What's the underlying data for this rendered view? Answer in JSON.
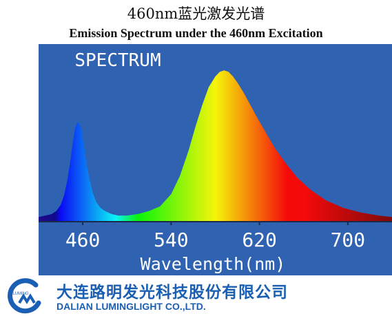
{
  "header": {
    "title_cn": "460nm蓝光激发光谱",
    "title_en": "Emission Spectrum under the 460nm Excitation"
  },
  "company": {
    "name_cn": "大连路明发光科技股份有限公司",
    "name_en": "DALIAN LUMINGLIGHT CO.,LTD.",
    "logo_text": "LUMING",
    "brand_color": "#1a5fb4"
  },
  "chart_data": {
    "type": "area",
    "title": "SPECTRUM",
    "xlabel": "Wavelength(nm)",
    "ylabel": "",
    "xlim": [
      420,
      740
    ],
    "ylim": [
      0,
      1.0
    ],
    "xticks": [
      460,
      540,
      620,
      700
    ],
    "xtick_labels": [
      "460",
      "540",
      "620",
      "700"
    ],
    "grid": false,
    "background_color": "#2f62b1",
    "fill": "wavelength-rainbow",
    "series": [
      {
        "x": [
          420,
          426,
          432,
          436,
          440,
          443,
          446,
          449,
          451,
          453,
          455,
          457,
          459,
          461,
          463,
          466,
          469,
          472,
          476,
          480,
          486,
          492,
          500,
          510,
          520,
          530,
          540,
          548,
          556,
          562,
          568,
          574,
          580,
          584,
          588,
          592,
          596,
          600,
          606,
          612,
          618,
          626,
          634,
          644,
          654,
          666,
          680,
          696,
          712,
          728,
          740
        ],
        "y": [
          0.03,
          0.04,
          0.05,
          0.07,
          0.11,
          0.17,
          0.27,
          0.41,
          0.52,
          0.61,
          0.65,
          0.64,
          0.6,
          0.5,
          0.4,
          0.28,
          0.19,
          0.13,
          0.09,
          0.07,
          0.05,
          0.04,
          0.04,
          0.05,
          0.07,
          0.1,
          0.18,
          0.3,
          0.47,
          0.62,
          0.76,
          0.88,
          0.95,
          0.98,
          0.99,
          0.98,
          0.95,
          0.91,
          0.84,
          0.76,
          0.68,
          0.58,
          0.48,
          0.38,
          0.29,
          0.21,
          0.14,
          0.09,
          0.06,
          0.04,
          0.03
        ]
      }
    ]
  }
}
